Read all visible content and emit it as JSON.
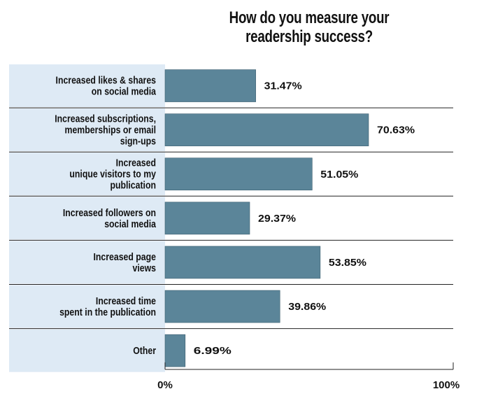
{
  "chart_data": {
    "type": "bar",
    "orientation": "horizontal",
    "title": "How do you measure your readership success?",
    "categories": [
      [
        "Increased likes & shares",
        "on social media"
      ],
      [
        "Increased subscriptions,",
        "memberships or email",
        "sign-ups"
      ],
      [
        "Increased",
        "unique visitors to my",
        "publication"
      ],
      [
        "Increased followers on",
        "social media"
      ],
      [
        "Increased page",
        "views"
      ],
      [
        "Increased time",
        "spent in the publication"
      ],
      [
        "Other"
      ]
    ],
    "values": [
      31.47,
      70.63,
      51.05,
      29.37,
      53.85,
      39.86,
      6.99
    ],
    "value_labels": [
      "31.47%",
      "70.63%",
      "51.05%",
      "29.37%",
      "53.85%",
      "39.86%",
      "6.99%"
    ],
    "xlim": [
      0,
      100
    ],
    "x_ticks": [
      "0%",
      "100%"
    ],
    "bar_color": "#5b8599",
    "label_band_color": "#deeaf5",
    "grid": false
  }
}
